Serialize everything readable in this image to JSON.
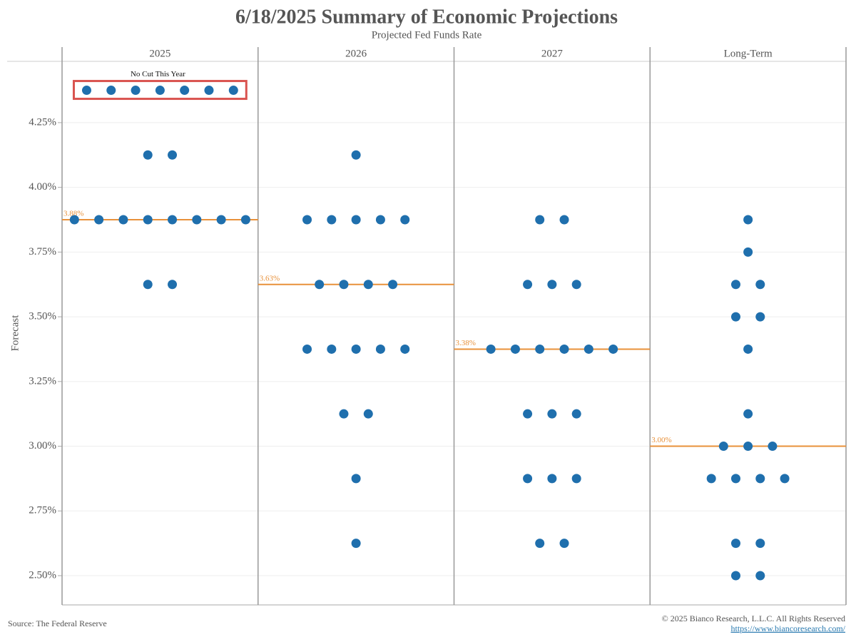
{
  "chart_data": {
    "type": "dot",
    "title": "6/18/2025 Summary of Economic Projections",
    "subtitle": "Projected Fed Funds Rate",
    "y_label": "Forecast",
    "ylim": [
      2.387,
      4.484
    ],
    "yticks": [
      {
        "value": 2.5,
        "label": "2.50%"
      },
      {
        "value": 2.75,
        "label": "2.75%"
      },
      {
        "value": 3.0,
        "label": "3.00%"
      },
      {
        "value": 3.25,
        "label": "3.25%"
      },
      {
        "value": 3.5,
        "label": "3.50%"
      },
      {
        "value": 3.75,
        "label": "3.75%"
      },
      {
        "value": 4.0,
        "label": "4.00%"
      },
      {
        "value": 4.25,
        "label": "4.25%"
      }
    ],
    "grid": true,
    "color": "#1f6fad",
    "median_color": "#e8913a",
    "panels": [
      {
        "name": "2025",
        "values": [
          4.375,
          4.375,
          4.375,
          4.375,
          4.375,
          4.375,
          4.375,
          4.125,
          4.125,
          3.875,
          3.875,
          3.875,
          3.875,
          3.875,
          3.875,
          3.875,
          3.875,
          3.625,
          3.625
        ],
        "median": 3.875,
        "median_label": "3.88%"
      },
      {
        "name": "2026",
        "values": [
          4.125,
          3.875,
          3.875,
          3.875,
          3.875,
          3.875,
          3.625,
          3.625,
          3.625,
          3.625,
          3.375,
          3.375,
          3.375,
          3.375,
          3.375,
          3.125,
          3.125,
          2.875,
          2.625
        ],
        "median": 3.625,
        "median_label": "3.63%"
      },
      {
        "name": "2027",
        "values": [
          3.875,
          3.875,
          3.625,
          3.625,
          3.625,
          3.375,
          3.375,
          3.375,
          3.375,
          3.375,
          3.375,
          3.125,
          3.125,
          3.125,
          2.875,
          2.875,
          2.875,
          2.625,
          2.625
        ],
        "median": 3.375,
        "median_label": "3.38%"
      },
      {
        "name": "Long-Term",
        "values": [
          3.875,
          3.75,
          3.625,
          3.625,
          3.5,
          3.5,
          3.375,
          3.125,
          3.0,
          3.0,
          3.0,
          2.875,
          2.875,
          2.875,
          2.875,
          2.625,
          2.625,
          2.5,
          2.5
        ],
        "median": 3.0,
        "median_label": "3.00%"
      }
    ],
    "annotation": {
      "text": "No Cut This Year",
      "panel": 0,
      "value": 4.375
    },
    "source": "Source: The Federal Reserve",
    "copyright": "© 2025 Bianco Research, L.L.C. All Rights Reserved",
    "url": "https://www.biancoresearch.com/"
  }
}
